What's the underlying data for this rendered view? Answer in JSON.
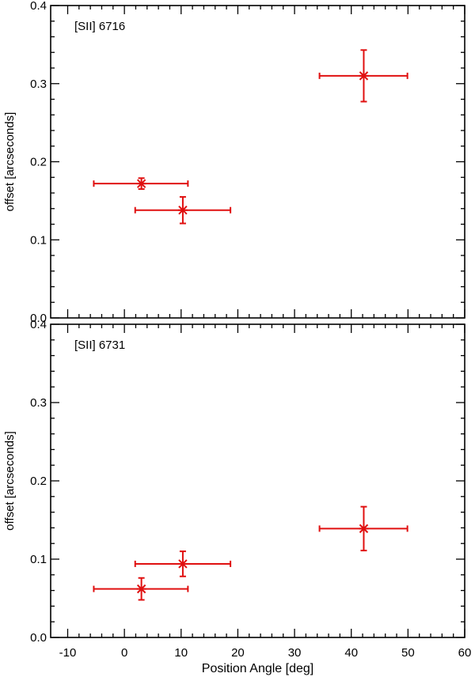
{
  "chart_data": {
    "type": "scatter",
    "xlabel": "Position Angle [deg]",
    "xlim": [
      -13,
      60
    ],
    "xticks": [
      -10,
      0,
      10,
      20,
      30,
      40,
      50,
      60
    ],
    "x_tick_labels": [
      "-10",
      "0",
      "10",
      "20",
      "30",
      "40",
      "50",
      "60"
    ],
    "colors": {
      "points": "#e01010",
      "axes": "#000000"
    },
    "panels": [
      {
        "label": "[SII] 6716",
        "ylabel": "offset [arcseconds]",
        "ylim": [
          0,
          0.4
        ],
        "yticks": [
          0.0,
          0.1,
          0.2,
          0.3,
          0.4
        ],
        "y_tick_labels": [
          "0.0",
          "0.1",
          "0.2",
          "0.3",
          "0.4"
        ],
        "marker": "asterisk",
        "points": [
          {
            "x": 3,
            "x_low": -5.4,
            "x_high": 11.2,
            "y": 0.172,
            "y_low": 0.165,
            "y_high": 0.179
          },
          {
            "x": 10.3,
            "x_low": 1.9,
            "x_high": 18.7,
            "y": 0.138,
            "y_low": 0.121,
            "y_high": 0.155
          },
          {
            "x": 42.2,
            "x_low": 34.4,
            "x_high": 49.9,
            "y": 0.31,
            "y_low": 0.277,
            "y_high": 0.343
          }
        ]
      },
      {
        "label": "[SII] 6731",
        "ylabel": "offset [arcseconds]",
        "ylim": [
          0,
          0.4
        ],
        "yticks": [
          0.0,
          0.1,
          0.2,
          0.3,
          0.4
        ],
        "y_tick_labels": [
          "0.0",
          "0.1",
          "0.2",
          "0.3",
          "0.4"
        ],
        "marker": "asterisk",
        "points": [
          {
            "x": 3,
            "x_low": -5.4,
            "x_high": 11.2,
            "y": 0.062,
            "y_low": 0.048,
            "y_high": 0.076
          },
          {
            "x": 10.3,
            "x_low": 1.9,
            "x_high": 18.7,
            "y": 0.094,
            "y_low": 0.078,
            "y_high": 0.11
          },
          {
            "x": 42.2,
            "x_low": 34.4,
            "x_high": 49.9,
            "y": 0.139,
            "y_low": 0.111,
            "y_high": 0.167
          }
        ]
      }
    ]
  }
}
